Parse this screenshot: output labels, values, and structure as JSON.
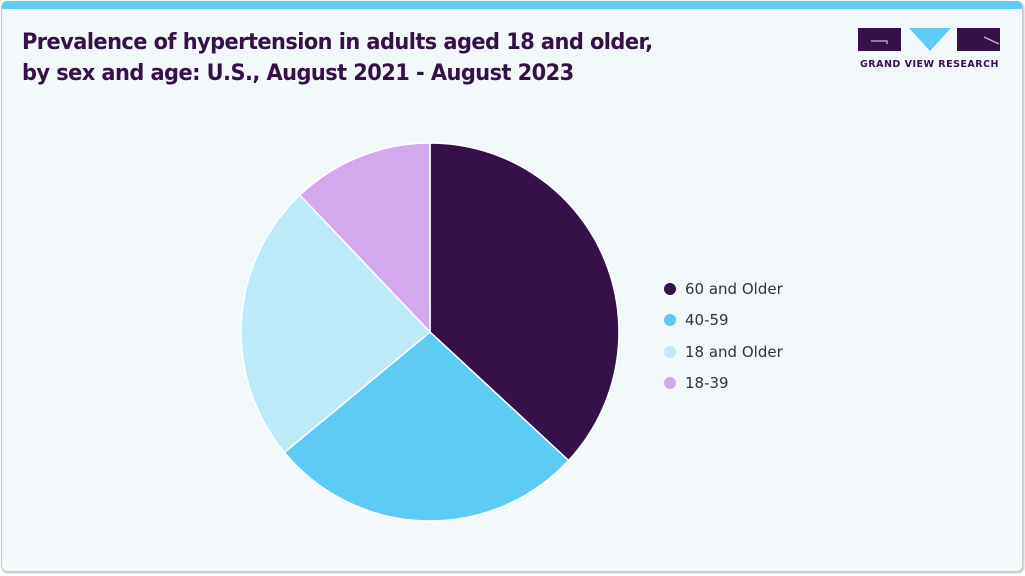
{
  "header": {
    "title_line1": "Prevalence of hypertension in adults aged 18 and older,",
    "title_line2": "by sex and age: U.S., August 2021 - August 2023"
  },
  "logo": {
    "text": "GRAND VIEW RESEARCH",
    "colors": {
      "dark": "#361049",
      "accent": "#5ecbf5"
    }
  },
  "chart_data": {
    "type": "pie",
    "title": "Prevalence of hypertension in adults aged 18 and older, by sex and age: U.S., August 2021 - August 2023",
    "categories": [
      "60 and Older",
      "40-59",
      "18 and Older",
      "18-39"
    ],
    "values": [
      36.9,
      27.1,
      23.9,
      12.1
    ],
    "unit": "percent share",
    "colors": [
      "#361049",
      "#5ecbf5",
      "#bde9f9",
      "#d3a8ec"
    ],
    "start_angle": "12 o'clock",
    "direction": "clockwise",
    "legend": "right",
    "data_labels": false
  }
}
